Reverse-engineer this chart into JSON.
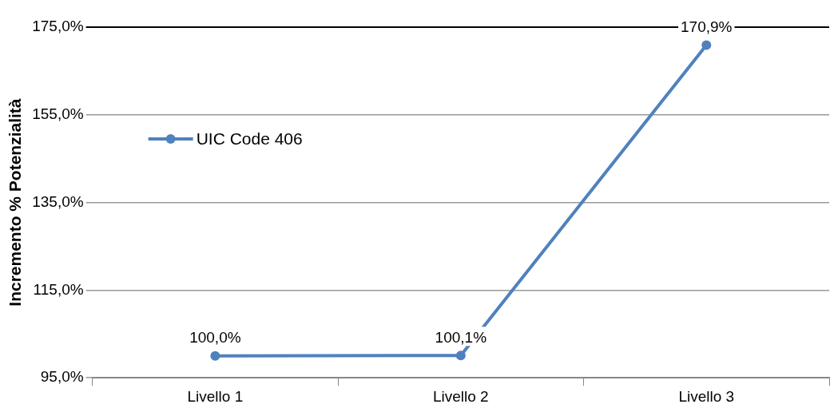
{
  "chart_data": {
    "type": "line",
    "ylabel": "Incremento % Potenzialità",
    "categories": [
      "Livello 1",
      "Livello 2",
      "Livello 3"
    ],
    "series": [
      {
        "name": "UIC Code 406",
        "color": "#4f81bd",
        "values": [
          100.0,
          100.1,
          170.9
        ],
        "value_labels": [
          "100,0%",
          "100,1%",
          "170,9%"
        ]
      }
    ],
    "ylim": [
      95,
      175
    ],
    "yticks": [
      {
        "value": 95,
        "label": "95,0%"
      },
      {
        "value": 115,
        "label": "115,0%"
      },
      {
        "value": 135,
        "label": "135,0%"
      },
      {
        "value": 155,
        "label": "155,0%"
      },
      {
        "value": 175,
        "label": "175,0%"
      }
    ],
    "grid": "y",
    "legend": "left",
    "marker": "circle",
    "line_style": "solid"
  }
}
